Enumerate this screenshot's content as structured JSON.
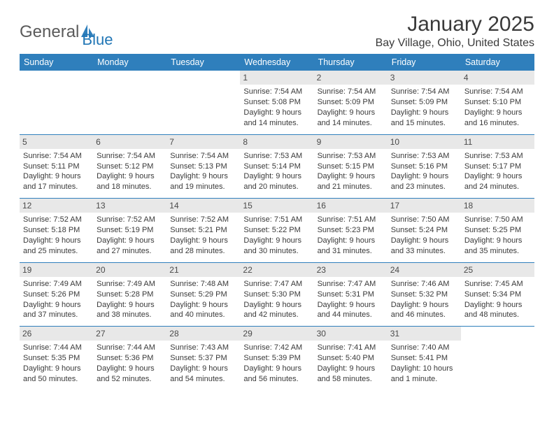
{
  "brand": {
    "part1": "General",
    "part2": "Blue"
  },
  "title": "January 2025",
  "location": "Bay Village, Ohio, United States",
  "colors": {
    "header_bg": "#2f7fbc",
    "header_text": "#ffffff",
    "daynum_bg": "#e8e8e8",
    "row_divider": "#2f7fbc",
    "text": "#3a3a3a",
    "logo_gray": "#5a5a5a",
    "logo_blue": "#2176b5"
  },
  "day_headers": [
    "Sunday",
    "Monday",
    "Tuesday",
    "Wednesday",
    "Thursday",
    "Friday",
    "Saturday"
  ],
  "weeks": [
    [
      {
        "n": "",
        "sr": "",
        "ss": "",
        "dl": ""
      },
      {
        "n": "",
        "sr": "",
        "ss": "",
        "dl": ""
      },
      {
        "n": "",
        "sr": "",
        "ss": "",
        "dl": ""
      },
      {
        "n": "1",
        "sr": "7:54 AM",
        "ss": "5:08 PM",
        "dl": "9 hours and 14 minutes."
      },
      {
        "n": "2",
        "sr": "7:54 AM",
        "ss": "5:09 PM",
        "dl": "9 hours and 14 minutes."
      },
      {
        "n": "3",
        "sr": "7:54 AM",
        "ss": "5:09 PM",
        "dl": "9 hours and 15 minutes."
      },
      {
        "n": "4",
        "sr": "7:54 AM",
        "ss": "5:10 PM",
        "dl": "9 hours and 16 minutes."
      }
    ],
    [
      {
        "n": "5",
        "sr": "7:54 AM",
        "ss": "5:11 PM",
        "dl": "9 hours and 17 minutes."
      },
      {
        "n": "6",
        "sr": "7:54 AM",
        "ss": "5:12 PM",
        "dl": "9 hours and 18 minutes."
      },
      {
        "n": "7",
        "sr": "7:54 AM",
        "ss": "5:13 PM",
        "dl": "9 hours and 19 minutes."
      },
      {
        "n": "8",
        "sr": "7:53 AM",
        "ss": "5:14 PM",
        "dl": "9 hours and 20 minutes."
      },
      {
        "n": "9",
        "sr": "7:53 AM",
        "ss": "5:15 PM",
        "dl": "9 hours and 21 minutes."
      },
      {
        "n": "10",
        "sr": "7:53 AM",
        "ss": "5:16 PM",
        "dl": "9 hours and 23 minutes."
      },
      {
        "n": "11",
        "sr": "7:53 AM",
        "ss": "5:17 PM",
        "dl": "9 hours and 24 minutes."
      }
    ],
    [
      {
        "n": "12",
        "sr": "7:52 AM",
        "ss": "5:18 PM",
        "dl": "9 hours and 25 minutes."
      },
      {
        "n": "13",
        "sr": "7:52 AM",
        "ss": "5:19 PM",
        "dl": "9 hours and 27 minutes."
      },
      {
        "n": "14",
        "sr": "7:52 AM",
        "ss": "5:21 PM",
        "dl": "9 hours and 28 minutes."
      },
      {
        "n": "15",
        "sr": "7:51 AM",
        "ss": "5:22 PM",
        "dl": "9 hours and 30 minutes."
      },
      {
        "n": "16",
        "sr": "7:51 AM",
        "ss": "5:23 PM",
        "dl": "9 hours and 31 minutes."
      },
      {
        "n": "17",
        "sr": "7:50 AM",
        "ss": "5:24 PM",
        "dl": "9 hours and 33 minutes."
      },
      {
        "n": "18",
        "sr": "7:50 AM",
        "ss": "5:25 PM",
        "dl": "9 hours and 35 minutes."
      }
    ],
    [
      {
        "n": "19",
        "sr": "7:49 AM",
        "ss": "5:26 PM",
        "dl": "9 hours and 37 minutes."
      },
      {
        "n": "20",
        "sr": "7:49 AM",
        "ss": "5:28 PM",
        "dl": "9 hours and 38 minutes."
      },
      {
        "n": "21",
        "sr": "7:48 AM",
        "ss": "5:29 PM",
        "dl": "9 hours and 40 minutes."
      },
      {
        "n": "22",
        "sr": "7:47 AM",
        "ss": "5:30 PM",
        "dl": "9 hours and 42 minutes."
      },
      {
        "n": "23",
        "sr": "7:47 AM",
        "ss": "5:31 PM",
        "dl": "9 hours and 44 minutes."
      },
      {
        "n": "24",
        "sr": "7:46 AM",
        "ss": "5:32 PM",
        "dl": "9 hours and 46 minutes."
      },
      {
        "n": "25",
        "sr": "7:45 AM",
        "ss": "5:34 PM",
        "dl": "9 hours and 48 minutes."
      }
    ],
    [
      {
        "n": "26",
        "sr": "7:44 AM",
        "ss": "5:35 PM",
        "dl": "9 hours and 50 minutes."
      },
      {
        "n": "27",
        "sr": "7:44 AM",
        "ss": "5:36 PM",
        "dl": "9 hours and 52 minutes."
      },
      {
        "n": "28",
        "sr": "7:43 AM",
        "ss": "5:37 PM",
        "dl": "9 hours and 54 minutes."
      },
      {
        "n": "29",
        "sr": "7:42 AM",
        "ss": "5:39 PM",
        "dl": "9 hours and 56 minutes."
      },
      {
        "n": "30",
        "sr": "7:41 AM",
        "ss": "5:40 PM",
        "dl": "9 hours and 58 minutes."
      },
      {
        "n": "31",
        "sr": "7:40 AM",
        "ss": "5:41 PM",
        "dl": "10 hours and 1 minute."
      },
      {
        "n": "",
        "sr": "",
        "ss": "",
        "dl": ""
      }
    ]
  ],
  "labels": {
    "sunrise": "Sunrise:",
    "sunset": "Sunset:",
    "daylight": "Daylight:"
  }
}
